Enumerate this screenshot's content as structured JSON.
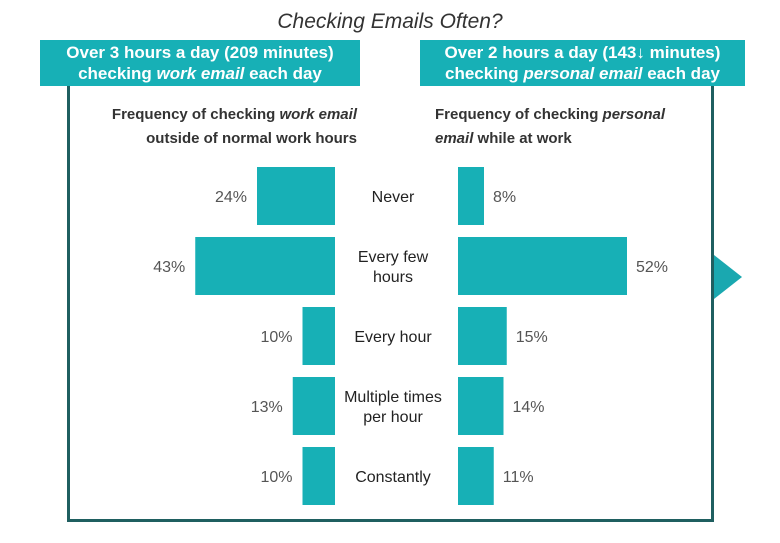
{
  "title": "Checking Emails Often?",
  "left_banner": {
    "line1": "Over 3 hours a day (209 minutes)",
    "line2_pre": "checking ",
    "line2_em": "work email",
    "line2_post": " each day"
  },
  "right_banner": {
    "line1": "Over 2 hours a day (143↓ minutes)",
    "line2_pre": "checking ",
    "line2_em": "personal email",
    "line2_post": " each day"
  },
  "left_subtitle": {
    "pre": "Frequency of checking ",
    "em": "work email",
    "post": "outside of normal work hours"
  },
  "right_subtitle": {
    "pre": "Frequency of checking ",
    "em": "personal",
    "em2": "email",
    "post": " while at work"
  },
  "colors": {
    "bar": "#17b0b6",
    "frame": "#1f5f60",
    "banner": "#17b0b6"
  },
  "chart_data": {
    "type": "bar",
    "orientation": "horizontal-butterfly",
    "categories": [
      [
        "Never"
      ],
      [
        "Every few",
        "hours"
      ],
      [
        "Every hour"
      ],
      [
        "Multiple times",
        "per hour"
      ],
      [
        "Constantly"
      ]
    ],
    "series": [
      {
        "values": [
          24,
          43,
          10,
          13,
          10
        ],
        "side": "left"
      },
      {
        "values": [
          8,
          52,
          15,
          14,
          11
        ],
        "side": "right"
      }
    ],
    "value_suffix": "%"
  }
}
